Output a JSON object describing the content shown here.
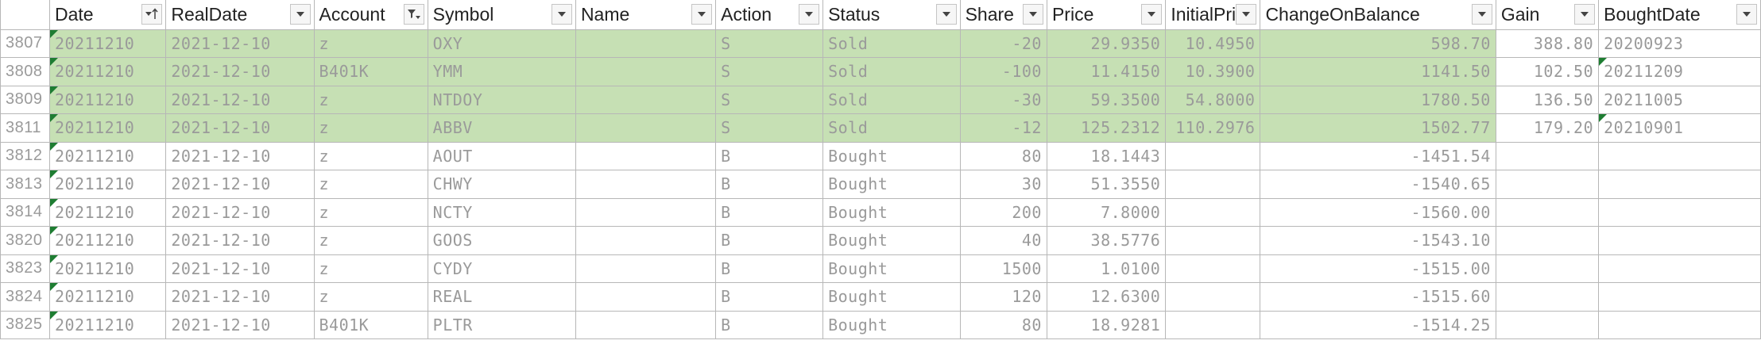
{
  "sheet": {
    "columns": [
      {
        "key": "rownum",
        "label": ""
      },
      {
        "key": "date",
        "label": "Date",
        "icon": "sort-ascending-filter-icon"
      },
      {
        "key": "realdate",
        "label": "RealDate",
        "icon": "dropdown-arrow-icon"
      },
      {
        "key": "account",
        "label": "Account",
        "icon": "filter-applied-icon"
      },
      {
        "key": "symbol",
        "label": "Symbol",
        "icon": "dropdown-arrow-icon"
      },
      {
        "key": "name",
        "label": "Name",
        "icon": "dropdown-arrow-icon"
      },
      {
        "key": "action",
        "label": "Action",
        "icon": "dropdown-arrow-icon"
      },
      {
        "key": "status",
        "label": "Status",
        "icon": "dropdown-arrow-icon"
      },
      {
        "key": "share",
        "label": "Share",
        "icon": "dropdown-arrow-icon"
      },
      {
        "key": "price",
        "label": "Price",
        "icon": "dropdown-arrow-icon"
      },
      {
        "key": "initialprice",
        "label": "InitialPrice",
        "icon": "dropdown-arrow-icon"
      },
      {
        "key": "changeonbalance",
        "label": "ChangeOnBalance",
        "icon": "dropdown-arrow-icon"
      },
      {
        "key": "gain",
        "label": "Gain",
        "icon": "dropdown-arrow-icon"
      },
      {
        "key": "boughtdate",
        "label": "BoughtDate",
        "icon": "dropdown-arrow-icon"
      }
    ],
    "highlight_color": "#c6e0b4",
    "flag_color": "#1e7d32",
    "row_number_color": "#0b1ecc",
    "rows": [
      {
        "rownum": "3807",
        "date": "20211210",
        "realdate": "2021-12-10",
        "account": "z",
        "symbol": "OXY",
        "name": "",
        "action": "S",
        "status": "Sold",
        "share": "-20",
        "price": "29.9350",
        "initialprice": "10.4950",
        "changeonbalance": "598.70",
        "gain": "388.80",
        "boughtdate": "20200923",
        "highlight": true,
        "boughtdate_flag": false
      },
      {
        "rownum": "3808",
        "date": "20211210",
        "realdate": "2021-12-10",
        "account": "B401K",
        "symbol": "YMM",
        "name": "",
        "action": "S",
        "status": "Sold",
        "share": "-100",
        "price": "11.4150",
        "initialprice": "10.3900",
        "changeonbalance": "1141.50",
        "gain": "102.50",
        "boughtdate": "20211209",
        "highlight": true,
        "boughtdate_flag": true
      },
      {
        "rownum": "3809",
        "date": "20211210",
        "realdate": "2021-12-10",
        "account": "z",
        "symbol": "NTDOY",
        "name": "",
        "action": "S",
        "status": "Sold",
        "share": "-30",
        "price": "59.3500",
        "initialprice": "54.8000",
        "changeonbalance": "1780.50",
        "gain": "136.50",
        "boughtdate": "20211005",
        "highlight": true,
        "boughtdate_flag": false
      },
      {
        "rownum": "3811",
        "date": "20211210",
        "realdate": "2021-12-10",
        "account": "z",
        "symbol": "ABBV",
        "name": "",
        "action": "S",
        "status": "Sold",
        "share": "-12",
        "price": "125.2312",
        "initialprice": "110.2976",
        "changeonbalance": "1502.77",
        "gain": "179.20",
        "boughtdate": "20210901",
        "highlight": true,
        "boughtdate_flag": true
      },
      {
        "rownum": "3812",
        "date": "20211210",
        "realdate": "2021-12-10",
        "account": "z",
        "symbol": "AOUT",
        "name": "",
        "action": "B",
        "status": "Bought",
        "share": "80",
        "price": "18.1443",
        "initialprice": "",
        "changeonbalance": "-1451.54",
        "gain": "",
        "boughtdate": "",
        "highlight": false,
        "boughtdate_flag": false
      },
      {
        "rownum": "3813",
        "date": "20211210",
        "realdate": "2021-12-10",
        "account": "z",
        "symbol": "CHWY",
        "name": "",
        "action": "B",
        "status": "Bought",
        "share": "30",
        "price": "51.3550",
        "initialprice": "",
        "changeonbalance": "-1540.65",
        "gain": "",
        "boughtdate": "",
        "highlight": false,
        "boughtdate_flag": false
      },
      {
        "rownum": "3814",
        "date": "20211210",
        "realdate": "2021-12-10",
        "account": "z",
        "symbol": "NCTY",
        "name": "",
        "action": "B",
        "status": "Bought",
        "share": "200",
        "price": "7.8000",
        "initialprice": "",
        "changeonbalance": "-1560.00",
        "gain": "",
        "boughtdate": "",
        "highlight": false,
        "boughtdate_flag": false
      },
      {
        "rownum": "3820",
        "date": "20211210",
        "realdate": "2021-12-10",
        "account": "z",
        "symbol": "GOOS",
        "name": "",
        "action": "B",
        "status": "Bought",
        "share": "40",
        "price": "38.5776",
        "initialprice": "",
        "changeonbalance": "-1543.10",
        "gain": "",
        "boughtdate": "",
        "highlight": false,
        "boughtdate_flag": false
      },
      {
        "rownum": "3823",
        "date": "20211210",
        "realdate": "2021-12-10",
        "account": "z",
        "symbol": "CYDY",
        "name": "",
        "action": "B",
        "status": "Bought",
        "share": "1500",
        "price": "1.0100",
        "initialprice": "",
        "changeonbalance": "-1515.00",
        "gain": "",
        "boughtdate": "",
        "highlight": false,
        "boughtdate_flag": false
      },
      {
        "rownum": "3824",
        "date": "20211210",
        "realdate": "2021-12-10",
        "account": "z",
        "symbol": "REAL",
        "name": "",
        "action": "B",
        "status": "Bought",
        "share": "120",
        "price": "12.6300",
        "initialprice": "",
        "changeonbalance": "-1515.60",
        "gain": "",
        "boughtdate": "",
        "highlight": false,
        "boughtdate_flag": false
      },
      {
        "rownum": "3825",
        "date": "20211210",
        "realdate": "2021-12-10",
        "account": "B401K",
        "symbol": "PLTR",
        "name": "",
        "action": "B",
        "status": "Bought",
        "share": "80",
        "price": "18.9281",
        "initialprice": "",
        "changeonbalance": "-1514.25",
        "gain": "",
        "boughtdate": "",
        "highlight": false,
        "boughtdate_flag": false
      }
    ]
  }
}
